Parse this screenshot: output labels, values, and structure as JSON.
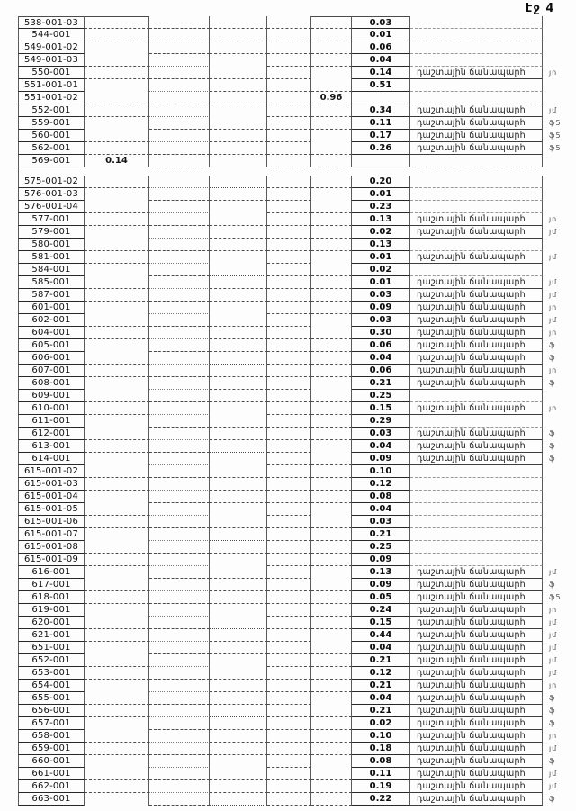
{
  "page": {
    "label": "էջ 4"
  },
  "road_label": "դաշտային ճանապարհ",
  "rows": [
    {
      "code": "538-001-03",
      "value": "0.03",
      "vcol": 7,
      "road": false,
      "margin": ""
    },
    {
      "code": "544-001",
      "value": "0.01",
      "vcol": 7,
      "road": false,
      "margin": ""
    },
    {
      "code": "549-001-02",
      "value": "0.06",
      "vcol": 7,
      "road": false,
      "margin": ""
    },
    {
      "code": "549-001-03",
      "value": "0.04",
      "vcol": 7,
      "road": false,
      "margin": ""
    },
    {
      "code": "550-001",
      "value": "0.14",
      "vcol": 7,
      "road": true,
      "margin": "յո"
    },
    {
      "code": "551-001-01",
      "value": "0.51",
      "vcol": 7,
      "road": false,
      "margin": ""
    },
    {
      "code": "551-001-02",
      "value": "0.96",
      "vcol": 6,
      "road": false,
      "margin": ""
    },
    {
      "code": "552-001",
      "value": "0.34",
      "vcol": 7,
      "road": true,
      "margin": "յմ"
    },
    {
      "code": "559-001",
      "value": "0.11",
      "vcol": 7,
      "road": true,
      "margin": "ֆ5"
    },
    {
      "code": "560-001",
      "value": "0.17",
      "vcol": 7,
      "road": true,
      "margin": "ֆ5"
    },
    {
      "code": "562-001",
      "value": "0.26",
      "vcol": 7,
      "road": true,
      "margin": "ֆ5"
    },
    {
      "code": "569-001",
      "value": "0.14",
      "vcol": 2,
      "road": false,
      "margin": ""
    },
    {
      "code": "575-001-02",
      "value": "0.20",
      "vcol": 7,
      "road": false,
      "margin": ""
    },
    {
      "code": "576-001-03",
      "value": "0.01",
      "vcol": 7,
      "road": false,
      "margin": ""
    },
    {
      "code": "576-001-04",
      "value": "0.23",
      "vcol": 7,
      "road": false,
      "margin": ""
    },
    {
      "code": "577-001",
      "value": "0.13",
      "vcol": 7,
      "road": true,
      "margin": "յո"
    },
    {
      "code": "579-001",
      "value": "0.02",
      "vcol": 7,
      "road": true,
      "margin": "յմ"
    },
    {
      "code": "580-001",
      "value": "0.13",
      "vcol": 7,
      "road": false,
      "margin": ""
    },
    {
      "code": "581-001",
      "value": "0.01",
      "vcol": 7,
      "road": true,
      "margin": "յմ"
    },
    {
      "code": "584-001",
      "value": "0.02",
      "vcol": 7,
      "road": false,
      "margin": ""
    },
    {
      "code": "585-001",
      "value": "0.01",
      "vcol": 7,
      "road": true,
      "margin": "յմ"
    },
    {
      "code": "587-001",
      "value": "0.03",
      "vcol": 7,
      "road": true,
      "margin": "յմ"
    },
    {
      "code": "601-001",
      "value": "0.09",
      "vcol": 7,
      "road": true,
      "margin": "յո"
    },
    {
      "code": "602-001",
      "value": "0.03",
      "vcol": 7,
      "road": true,
      "margin": "յմ"
    },
    {
      "code": "604-001",
      "value": "0.30",
      "vcol": 7,
      "road": true,
      "margin": "յո"
    },
    {
      "code": "605-001",
      "value": "0.06",
      "vcol": 7,
      "road": true,
      "margin": "ֆ"
    },
    {
      "code": "606-001",
      "value": "0.04",
      "vcol": 7,
      "road": true,
      "margin": "ֆ"
    },
    {
      "code": "607-001",
      "value": "0.06",
      "vcol": 7,
      "road": true,
      "margin": "յո"
    },
    {
      "code": "608-001",
      "value": "0.21",
      "vcol": 7,
      "road": true,
      "margin": "ֆ"
    },
    {
      "code": "609-001",
      "value": "0.25",
      "vcol": 7,
      "road": false,
      "margin": ""
    },
    {
      "code": "610-001",
      "value": "0.15",
      "vcol": 7,
      "road": true,
      "margin": "յո"
    },
    {
      "code": "611-001",
      "value": "0.29",
      "vcol": 7,
      "road": false,
      "margin": ""
    },
    {
      "code": "612-001",
      "value": "0.03",
      "vcol": 7,
      "road": true,
      "margin": "ֆ"
    },
    {
      "code": "613-001",
      "value": "0.04",
      "vcol": 7,
      "road": true,
      "margin": "ֆ"
    },
    {
      "code": "614-001",
      "value": "0.09",
      "vcol": 7,
      "road": true,
      "margin": "ֆ"
    },
    {
      "code": "615-001-02",
      "value": "0.10",
      "vcol": 7,
      "road": false,
      "margin": ""
    },
    {
      "code": "615-001-03",
      "value": "0.12",
      "vcol": 7,
      "road": false,
      "margin": ""
    },
    {
      "code": "615-001-04",
      "value": "0.08",
      "vcol": 7,
      "road": false,
      "margin": ""
    },
    {
      "code": "615-001-05",
      "value": "0.04",
      "vcol": 7,
      "road": false,
      "margin": ""
    },
    {
      "code": "615-001-06",
      "value": "0.03",
      "vcol": 7,
      "road": false,
      "margin": ""
    },
    {
      "code": "615-001-07",
      "value": "0.21",
      "vcol": 7,
      "road": false,
      "margin": ""
    },
    {
      "code": "615-001-08",
      "value": "0.25",
      "vcol": 7,
      "road": false,
      "margin": ""
    },
    {
      "code": "615-001-09",
      "value": "0.09",
      "vcol": 7,
      "road": false,
      "margin": ""
    },
    {
      "code": "616-001",
      "value": "0.13",
      "vcol": 7,
      "road": true,
      "margin": "յմ"
    },
    {
      "code": "617-001",
      "value": "0.09",
      "vcol": 7,
      "road": true,
      "margin": "ֆ"
    },
    {
      "code": "618-001",
      "value": "0.05",
      "vcol": 7,
      "road": true,
      "margin": "ֆ5"
    },
    {
      "code": "619-001",
      "value": "0.24",
      "vcol": 7,
      "road": true,
      "margin": "յո"
    },
    {
      "code": "620-001",
      "value": "0.15",
      "vcol": 7,
      "road": true,
      "margin": "յմ"
    },
    {
      "code": "621-001",
      "value": "0.44",
      "vcol": 7,
      "road": true,
      "margin": "յմ"
    },
    {
      "code": "651-001",
      "value": "0.04",
      "vcol": 7,
      "road": true,
      "margin": "յմ"
    },
    {
      "code": "652-001",
      "value": "0.21",
      "vcol": 7,
      "road": true,
      "margin": "յմ"
    },
    {
      "code": "653-001",
      "value": "0.12",
      "vcol": 7,
      "road": true,
      "margin": "յմ"
    },
    {
      "code": "654-001",
      "value": "0.21",
      "vcol": 7,
      "road": true,
      "margin": "յո"
    },
    {
      "code": "655-001",
      "value": "0.04",
      "vcol": 7,
      "road": true,
      "margin": "ֆ"
    },
    {
      "code": "656-001",
      "value": "0.21",
      "vcol": 7,
      "road": true,
      "margin": "ֆ"
    },
    {
      "code": "657-001",
      "value": "0.02",
      "vcol": 7,
      "road": true,
      "margin": "ֆ"
    },
    {
      "code": "658-001",
      "value": "0.10",
      "vcol": 7,
      "road": true,
      "margin": "յո"
    },
    {
      "code": "659-001",
      "value": "0.18",
      "vcol": 7,
      "road": true,
      "margin": "յմ"
    },
    {
      "code": "660-001",
      "value": "0.08",
      "vcol": 7,
      "road": true,
      "margin": "ֆ"
    },
    {
      "code": "661-001",
      "value": "0.11",
      "vcol": 7,
      "road": true,
      "margin": "յմ"
    },
    {
      "code": "662-001",
      "value": "0.19",
      "vcol": 7,
      "road": true,
      "margin": "յմ"
    },
    {
      "code": "663-001",
      "value": "0.22",
      "vcol": 7,
      "road": true,
      "margin": "ֆ"
    }
  ],
  "spacer_after_row_index": 11
}
